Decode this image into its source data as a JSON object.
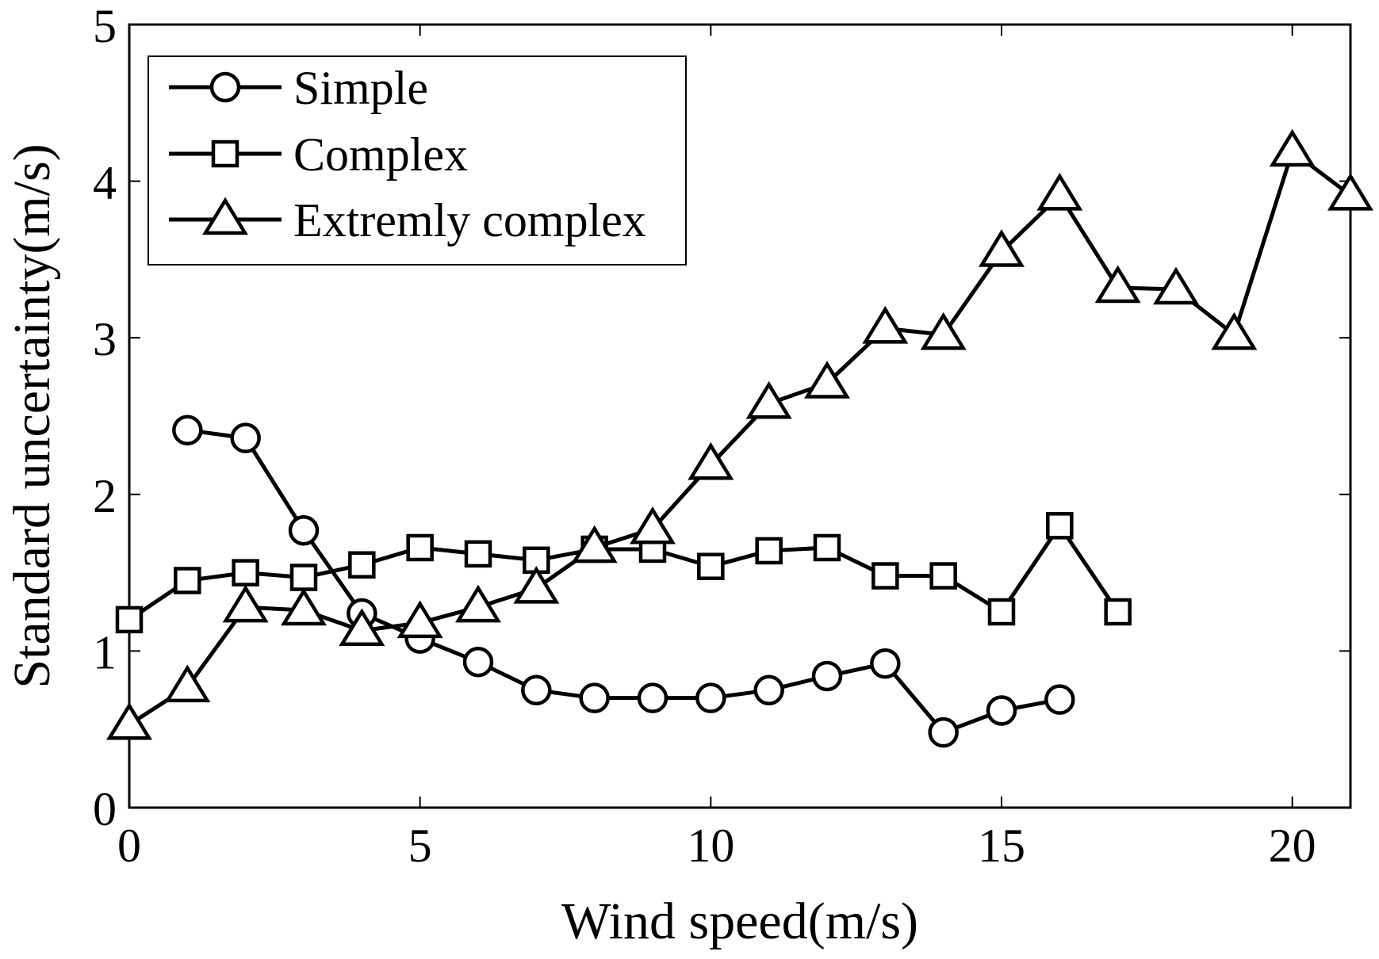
{
  "chart_data": {
    "type": "line",
    "title": "",
    "xlabel": "Wind speed(m/s)",
    "ylabel": "Standard uncertainty(m/s)",
    "xlim": [
      0,
      21
    ],
    "ylim": [
      0,
      5
    ],
    "xticks": [
      0,
      5,
      10,
      15,
      20
    ],
    "yticks": [
      0,
      1,
      2,
      3,
      4,
      5
    ],
    "xtick_labels": [
      "0",
      "5",
      "10",
      "15",
      "20"
    ],
    "ytick_labels": [
      "0",
      "1",
      "2",
      "3",
      "4",
      "5"
    ],
    "grid": false,
    "legend_position": "top-left",
    "series": [
      {
        "name": "Simple",
        "marker": "circle",
        "x": [
          1,
          2,
          3,
          4,
          5,
          6,
          7,
          8,
          9,
          10,
          11,
          12,
          13,
          14,
          15,
          16
        ],
        "values": [
          2.41,
          2.36,
          1.77,
          1.24,
          1.08,
          0.93,
          0.75,
          0.7,
          0.7,
          0.7,
          0.75,
          0.84,
          0.92,
          0.48,
          0.62,
          0.69
        ]
      },
      {
        "name": "Complex",
        "marker": "square",
        "x": [
          0,
          1,
          2,
          3,
          4,
          5,
          6,
          7,
          8,
          9,
          10,
          11,
          12,
          13,
          14,
          15,
          16,
          17
        ],
        "values": [
          1.2,
          1.45,
          1.5,
          1.47,
          1.55,
          1.66,
          1.62,
          1.58,
          1.65,
          1.65,
          1.54,
          1.64,
          1.66,
          1.48,
          1.48,
          1.25,
          1.8,
          1.25
        ]
      },
      {
        "name": "Extremly complex",
        "marker": "triangle",
        "x": [
          0,
          1,
          2,
          3,
          4,
          5,
          6,
          7,
          8,
          9,
          10,
          11,
          12,
          13,
          14,
          15,
          16,
          17,
          18,
          19,
          20,
          21
        ],
        "values": [
          0.53,
          0.77,
          1.28,
          1.26,
          1.13,
          1.18,
          1.28,
          1.4,
          1.66,
          1.78,
          2.19,
          2.58,
          2.71,
          3.06,
          3.02,
          3.55,
          3.91,
          3.32,
          3.31,
          3.02,
          4.19,
          3.91
        ]
      }
    ]
  }
}
